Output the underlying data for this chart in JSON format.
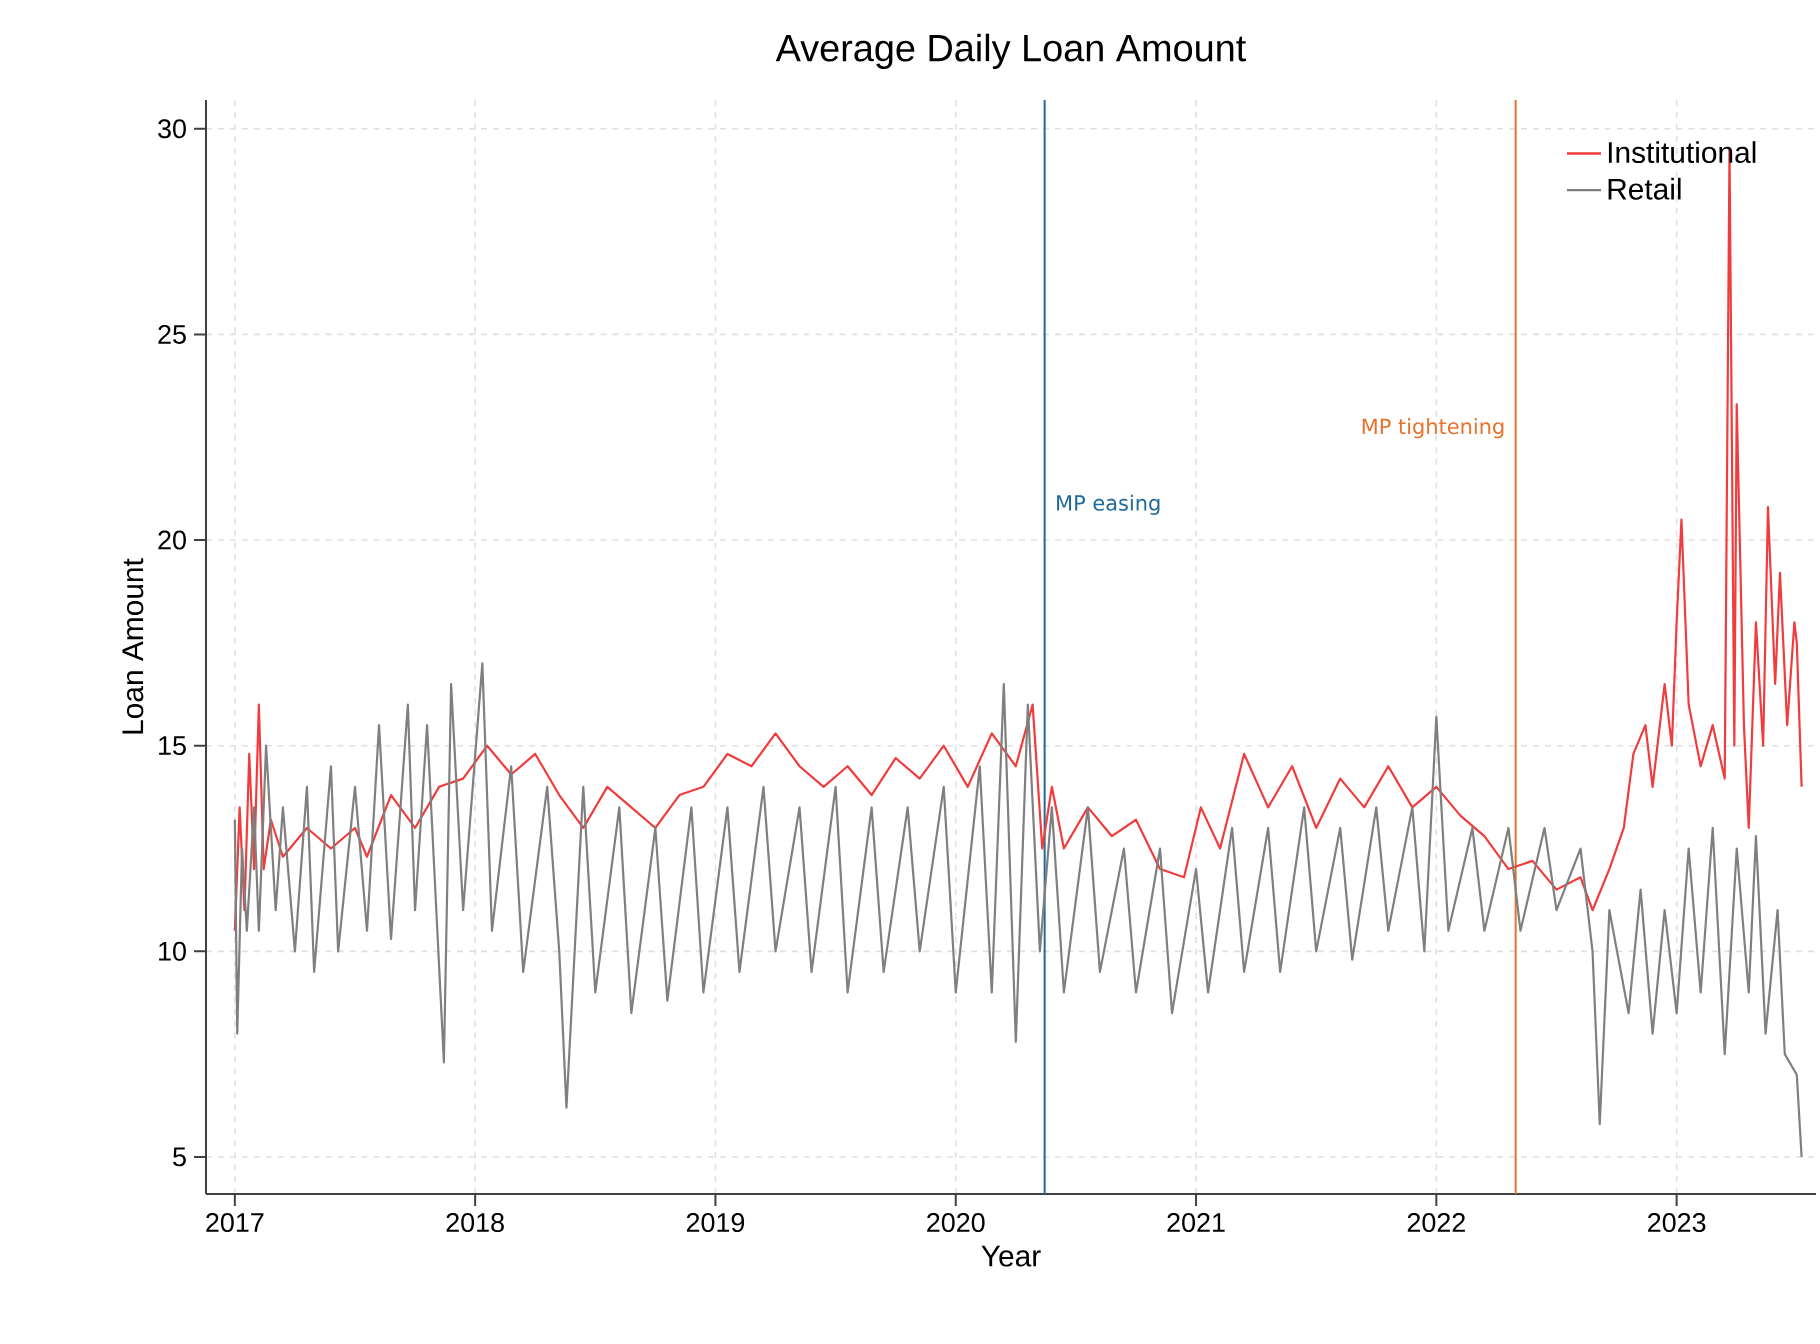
{
  "chart_data": {
    "type": "line",
    "title": "Average Daily Loan Amount",
    "xlabel": "Year",
    "ylabel": "Loan Amount",
    "xlim": [
      2016.88,
      2023.58
    ],
    "xticks": [
      2017,
      2018,
      2019,
      2020,
      2021,
      2022,
      2023
    ],
    "ylim": [
      4.1,
      30.7
    ],
    "yticks": [
      5,
      10,
      15,
      20,
      25,
      30
    ],
    "grid": true,
    "legend": "top right",
    "line_style": "solid",
    "ref_lines": [
      {
        "axis": "x",
        "value": 2020.37,
        "label": "MP easing",
        "color": "#1f6a9a"
      },
      {
        "axis": "x",
        "value": 2022.33,
        "label": "MP tightening",
        "color": "#e8702a"
      }
    ],
    "series": [
      {
        "name": "Institutional",
        "color": "#f03c3c",
        "x": [
          2017.0,
          2017.02,
          2017.04,
          2017.06,
          2017.08,
          2017.1,
          2017.12,
          2017.15,
          2017.2,
          2017.3,
          2017.4,
          2017.5,
          2017.55,
          2017.65,
          2017.75,
          2017.85,
          2017.95,
          2018.05,
          2018.15,
          2018.25,
          2018.35,
          2018.45,
          2018.55,
          2018.65,
          2018.75,
          2018.85,
          2018.95,
          2019.05,
          2019.15,
          2019.25,
          2019.35,
          2019.45,
          2019.55,
          2019.65,
          2019.75,
          2019.85,
          2019.95,
          2020.05,
          2020.15,
          2020.25,
          2020.32,
          2020.36,
          2020.4,
          2020.45,
          2020.55,
          2020.65,
          2020.75,
          2020.85,
          2020.95,
          2021.02,
          2021.1,
          2021.2,
          2021.3,
          2021.4,
          2021.5,
          2021.6,
          2021.7,
          2021.8,
          2021.9,
          2022.0,
          2022.1,
          2022.2,
          2022.3,
          2022.4,
          2022.5,
          2022.6,
          2022.65,
          2022.72,
          2022.78,
          2022.82,
          2022.87,
          2022.9,
          2022.95,
          2022.98,
          2023.0,
          2023.02,
          2023.05,
          2023.1,
          2023.15,
          2023.2,
          2023.22,
          2023.24,
          2023.25,
          2023.28,
          2023.3,
          2023.33,
          2023.36,
          2023.38,
          2023.41,
          2023.43,
          2023.46,
          2023.49,
          2023.5,
          2023.52
        ],
        "values": [
          10.5,
          13.5,
          11.0,
          14.8,
          12.0,
          16.0,
          12.0,
          13.2,
          12.3,
          13.0,
          12.5,
          13.0,
          12.3,
          13.8,
          13.0,
          14.0,
          14.2,
          15.0,
          14.3,
          14.8,
          13.8,
          13.0,
          14.0,
          13.5,
          13.0,
          13.8,
          14.0,
          14.8,
          14.5,
          15.3,
          14.5,
          14.0,
          14.5,
          13.8,
          14.7,
          14.2,
          15.0,
          14.0,
          15.3,
          14.5,
          16.0,
          12.5,
          14.0,
          12.5,
          13.5,
          12.8,
          13.2,
          12.0,
          11.8,
          13.5,
          12.5,
          14.8,
          13.5,
          14.5,
          13.0,
          14.2,
          13.5,
          14.5,
          13.5,
          14.0,
          13.3,
          12.8,
          12.0,
          12.2,
          11.5,
          11.8,
          11.0,
          12.0,
          13.0,
          14.8,
          15.5,
          14.0,
          16.5,
          15.0,
          18.0,
          20.5,
          16.0,
          14.5,
          15.5,
          14.2,
          29.5,
          15.0,
          23.3,
          15.5,
          13.0,
          18.0,
          15.0,
          20.8,
          16.5,
          19.2,
          15.5,
          18.0,
          17.5,
          14.0
        ]
      },
      {
        "name": "Retail",
        "color": "#7f7f7f",
        "x": [
          2017.0,
          2017.01,
          2017.03,
          2017.05,
          2017.08,
          2017.1,
          2017.13,
          2017.17,
          2017.2,
          2017.25,
          2017.3,
          2017.33,
          2017.4,
          2017.43,
          2017.5,
          2017.55,
          2017.6,
          2017.65,
          2017.72,
          2017.75,
          2017.8,
          2017.87,
          2017.9,
          2017.95,
          2018.03,
          2018.07,
          2018.15,
          2018.2,
          2018.3,
          2018.35,
          2018.38,
          2018.45,
          2018.5,
          2018.6,
          2018.65,
          2018.75,
          2018.8,
          2018.9,
          2018.95,
          2019.05,
          2019.1,
          2019.2,
          2019.25,
          2019.35,
          2019.4,
          2019.5,
          2019.55,
          2019.65,
          2019.7,
          2019.8,
          2019.85,
          2019.95,
          2020.0,
          2020.1,
          2020.15,
          2020.2,
          2020.25,
          2020.3,
          2020.35,
          2020.4,
          2020.45,
          2020.55,
          2020.6,
          2020.7,
          2020.75,
          2020.85,
          2020.9,
          2021.0,
          2021.05,
          2021.15,
          2021.2,
          2021.3,
          2021.35,
          2021.45,
          2021.5,
          2021.6,
          2021.65,
          2021.75,
          2021.8,
          2021.9,
          2021.95,
          2022.0,
          2022.05,
          2022.15,
          2022.2,
          2022.3,
          2022.35,
          2022.45,
          2022.5,
          2022.6,
          2022.65,
          2022.68,
          2022.72,
          2022.8,
          2022.85,
          2022.9,
          2022.95,
          2023.0,
          2023.05,
          2023.1,
          2023.15,
          2023.2,
          2023.25,
          2023.3,
          2023.33,
          2023.37,
          2023.42,
          2023.45,
          2023.5,
          2023.52
        ],
        "values": [
          13.2,
          8.0,
          12.5,
          10.5,
          13.5,
          10.5,
          15.0,
          11.0,
          13.5,
          10.0,
          14.0,
          9.5,
          14.5,
          10.0,
          14.0,
          10.5,
          15.5,
          10.3,
          16.0,
          11.0,
          15.5,
          7.3,
          16.5,
          11.0,
          17.0,
          10.5,
          14.5,
          9.5,
          14.0,
          10.0,
          6.2,
          14.0,
          9.0,
          13.5,
          8.5,
          13.0,
          8.8,
          13.5,
          9.0,
          13.5,
          9.5,
          14.0,
          10.0,
          13.5,
          9.5,
          14.0,
          9.0,
          13.5,
          9.5,
          13.5,
          10.0,
          14.0,
          9.0,
          14.5,
          9.0,
          16.5,
          7.8,
          16.0,
          10.0,
          13.5,
          9.0,
          13.5,
          9.5,
          12.5,
          9.0,
          12.5,
          8.5,
          12.0,
          9.0,
          13.0,
          9.5,
          13.0,
          9.5,
          13.5,
          10.0,
          13.0,
          9.8,
          13.5,
          10.5,
          13.5,
          10.0,
          15.7,
          10.5,
          13.0,
          10.5,
          13.0,
          10.5,
          13.0,
          11.0,
          12.5,
          10.0,
          5.8,
          11.0,
          8.5,
          11.5,
          8.0,
          11.0,
          8.5,
          12.5,
          9.0,
          13.0,
          7.5,
          12.5,
          9.0,
          12.8,
          8.0,
          11.0,
          7.5,
          7.0,
          5.0
        ]
      }
    ]
  }
}
